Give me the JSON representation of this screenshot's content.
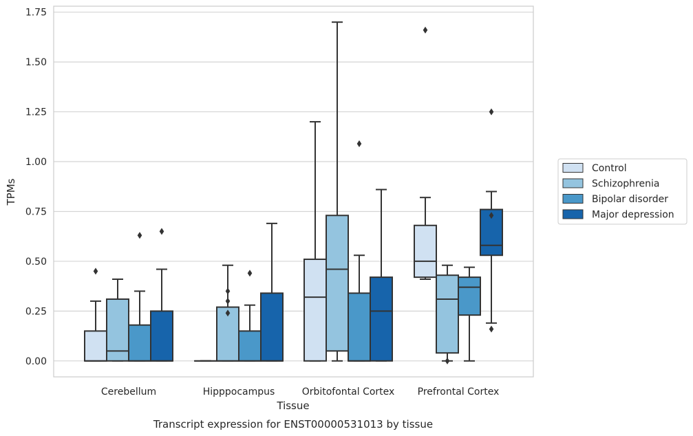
{
  "chart_data": {
    "type": "boxplot",
    "caption": "Transcript expression for ENST00000531013 by tissue",
    "xlabel": "Tissue",
    "ylabel": "TPMs",
    "ylim": [
      -0.08,
      1.78
    ],
    "yticks": [
      "0.00",
      "0.25",
      "0.50",
      "0.75",
      "1.00",
      "1.25",
      "1.50",
      "1.75"
    ],
    "ytick_values": [
      0,
      0.25,
      0.5,
      0.75,
      1.0,
      1.25,
      1.5,
      1.75
    ],
    "grid": true,
    "legend_position": "right",
    "categories": [
      "Cerebellum",
      "Hipppocampus",
      "Orbitofontal Cortex",
      "Prefrontal Cortex"
    ],
    "series": [
      {
        "name": "Control",
        "color": "#d0e1f2",
        "boxes": [
          {
            "whisker_low": 0,
            "q1": 0,
            "median": 0,
            "q3": 0.15,
            "whisker_high": 0.3,
            "outliers": [
              0.45
            ]
          },
          {
            "whisker_low": 0,
            "q1": 0,
            "median": 0,
            "q3": 0,
            "whisker_high": 0,
            "outliers": []
          },
          {
            "whisker_low": 0,
            "q1": 0,
            "median": 0.32,
            "q3": 0.51,
            "whisker_high": 1.2,
            "outliers": []
          },
          {
            "whisker_low": 0.41,
            "q1": 0.42,
            "median": 0.5,
            "q3": 0.68,
            "whisker_high": 0.82,
            "outliers": [
              1.66
            ]
          }
        ]
      },
      {
        "name": "Schizophrenia",
        "color": "#94c4df",
        "boxes": [
          {
            "whisker_low": 0,
            "q1": 0,
            "median": 0.05,
            "q3": 0.31,
            "whisker_high": 0.41,
            "outliers": []
          },
          {
            "whisker_low": 0,
            "q1": 0,
            "median": 0,
            "q3": 0.27,
            "whisker_high": 0.48,
            "outliers": [
              0.24,
              0.3,
              0.35
            ]
          },
          {
            "whisker_low": 0,
            "q1": 0.05,
            "median": 0.46,
            "q3": 0.73,
            "whisker_high": 1.7,
            "outliers": []
          },
          {
            "whisker_low": 0,
            "q1": 0.04,
            "median": 0.31,
            "q3": 0.43,
            "whisker_high": 0.48,
            "outliers": [
              0
            ]
          }
        ]
      },
      {
        "name": "Bipolar disorder",
        "color": "#4a98c9",
        "boxes": [
          {
            "whisker_low": 0,
            "q1": 0,
            "median": 0,
            "q3": 0.18,
            "whisker_high": 0.35,
            "outliers": [
              0.63
            ]
          },
          {
            "whisker_low": 0,
            "q1": 0,
            "median": 0,
            "q3": 0.15,
            "whisker_high": 0.28,
            "outliers": [
              0.44
            ]
          },
          {
            "whisker_low": 0,
            "q1": 0,
            "median": 0,
            "q3": 0.34,
            "whisker_high": 0.53,
            "outliers": [
              1.09
            ]
          },
          {
            "whisker_low": 0,
            "q1": 0.23,
            "median": 0.37,
            "q3": 0.42,
            "whisker_high": 0.47,
            "outliers": []
          }
        ]
      },
      {
        "name": "Major depression",
        "color": "#1764ab",
        "boxes": [
          {
            "whisker_low": 0,
            "q1": 0,
            "median": 0,
            "q3": 0.25,
            "whisker_high": 0.46,
            "outliers": [
              0.65
            ]
          },
          {
            "whisker_low": 0,
            "q1": 0,
            "median": 0,
            "q3": 0.34,
            "whisker_high": 0.69,
            "outliers": []
          },
          {
            "whisker_low": 0,
            "q1": 0,
            "median": 0.25,
            "q3": 0.42,
            "whisker_high": 0.86,
            "outliers": []
          },
          {
            "whisker_low": 0.19,
            "q1": 0.53,
            "median": 0.58,
            "q3": 0.76,
            "whisker_high": 0.85,
            "outliers": [
              0.73,
              0.16,
              1.25
            ]
          }
        ]
      }
    ]
  }
}
